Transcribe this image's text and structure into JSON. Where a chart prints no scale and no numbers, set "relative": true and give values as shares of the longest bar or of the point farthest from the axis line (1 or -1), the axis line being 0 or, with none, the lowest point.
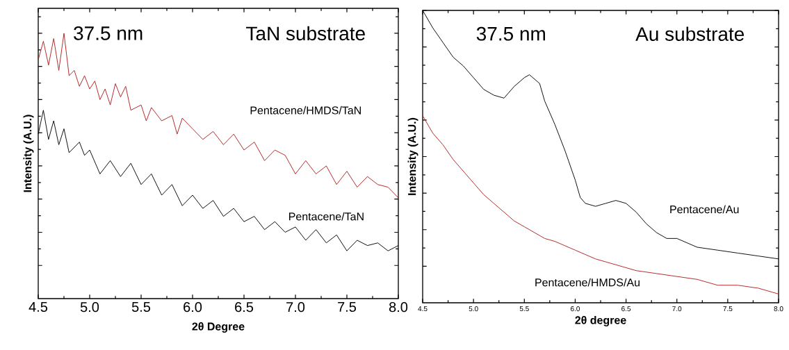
{
  "chart_data": [
    {
      "type": "line",
      "relative": true,
      "title": "TaN substrate",
      "annotations": [
        "37.5 nm"
      ],
      "xlabel": "2θ Degree",
      "ylabel": "Intensity (A.U.)",
      "xlim": [
        4.5,
        8.0
      ],
      "xticks": [
        4.5,
        {
          "value": 5,
          "label": "5.0"
        },
        5.5,
        {
          "value": 6,
          "label": "6.0"
        },
        6.5,
        {
          "value": 7,
          "label": "7.0"
        },
        7.5,
        {
          "value": 8,
          "label": "8.0"
        }
      ],
      "series": [
        {
          "name": "Pentacene/HMDS/TaN",
          "color": "#b01e1e",
          "x": [
            4.5,
            4.55,
            4.6,
            4.65,
            4.7,
            4.75,
            4.8,
            4.85,
            4.9,
            4.95,
            5.0,
            5.05,
            5.1,
            5.15,
            5.2,
            5.25,
            5.3,
            5.35,
            5.4,
            5.5,
            5.55,
            5.6,
            5.7,
            5.8,
            5.85,
            5.9,
            6.0,
            6.1,
            6.2,
            6.3,
            6.4,
            6.5,
            6.6,
            6.7,
            6.8,
            6.9,
            7.0,
            7.1,
            7.2,
            7.3,
            7.4,
            7.5,
            7.6,
            7.7,
            7.8,
            7.9,
            8.0
          ],
          "values": [
            0.9,
            0.97,
            0.88,
            0.98,
            0.86,
            1.0,
            0.84,
            0.86,
            0.8,
            0.84,
            0.79,
            0.82,
            0.75,
            0.79,
            0.73,
            0.81,
            0.76,
            0.8,
            0.71,
            0.73,
            0.67,
            0.72,
            0.67,
            0.69,
            0.62,
            0.68,
            0.64,
            0.6,
            0.63,
            0.58,
            0.62,
            0.56,
            0.59,
            0.52,
            0.56,
            0.54,
            0.47,
            0.52,
            0.47,
            0.5,
            0.43,
            0.48,
            0.42,
            0.46,
            0.43,
            0.42,
            0.38
          ]
        },
        {
          "name": "Pentacene/TaN",
          "color": "#000000",
          "x": [
            4.5,
            4.55,
            4.6,
            4.65,
            4.7,
            4.75,
            4.8,
            4.9,
            4.95,
            5.0,
            5.1,
            5.2,
            5.3,
            5.4,
            5.5,
            5.6,
            5.7,
            5.8,
            5.9,
            6.0,
            6.1,
            6.2,
            6.3,
            6.4,
            6.5,
            6.6,
            6.7,
            6.8,
            6.9,
            7.0,
            7.1,
            7.2,
            7.3,
            7.4,
            7.5,
            7.6,
            7.7,
            7.8,
            7.9,
            8.0
          ],
          "values": [
            0.62,
            0.71,
            0.6,
            0.67,
            0.58,
            0.64,
            0.55,
            0.59,
            0.54,
            0.56,
            0.47,
            0.52,
            0.46,
            0.51,
            0.43,
            0.47,
            0.39,
            0.43,
            0.35,
            0.39,
            0.34,
            0.37,
            0.31,
            0.34,
            0.29,
            0.31,
            0.26,
            0.29,
            0.25,
            0.27,
            0.22,
            0.26,
            0.21,
            0.24,
            0.18,
            0.22,
            0.2,
            0.21,
            0.18,
            0.2
          ]
        }
      ]
    },
    {
      "type": "line",
      "relative": true,
      "title": "Au substrate",
      "annotations": [
        "37.5 nm"
      ],
      "xlabel": "2θ degree",
      "ylabel": "Intensity (A.U.)",
      "xlim": [
        4.5,
        8.0
      ],
      "xticks": [
        4.5,
        {
          "value": 5,
          "label": "5.0"
        },
        5.5,
        {
          "value": 6,
          "label": "6.0"
        },
        6.5,
        {
          "value": 7,
          "label": "7.0"
        },
        7.5,
        {
          "value": 8,
          "label": "8.0"
        }
      ],
      "series": [
        {
          "name": "Pentacene/Au",
          "color": "#000000",
          "x": [
            4.5,
            4.6,
            4.7,
            4.8,
            4.9,
            5.0,
            5.1,
            5.2,
            5.3,
            5.4,
            5.5,
            5.55,
            5.65,
            5.7,
            5.8,
            5.9,
            6.0,
            6.05,
            6.1,
            6.2,
            6.3,
            6.4,
            6.5,
            6.6,
            6.7,
            6.8,
            6.9,
            7.0,
            7.2,
            7.4,
            7.6,
            7.8,
            8.0
          ],
          "values": [
            1.0,
            0.94,
            0.89,
            0.84,
            0.81,
            0.77,
            0.73,
            0.71,
            0.7,
            0.74,
            0.77,
            0.78,
            0.75,
            0.69,
            0.61,
            0.52,
            0.42,
            0.36,
            0.34,
            0.33,
            0.34,
            0.35,
            0.34,
            0.31,
            0.27,
            0.24,
            0.22,
            0.22,
            0.19,
            0.18,
            0.17,
            0.16,
            0.15
          ]
        },
        {
          "name": "Pentacene/HMDS/Au",
          "color": "#b01e1e",
          "x": [
            4.5,
            4.6,
            4.7,
            4.8,
            4.9,
            5.0,
            5.1,
            5.2,
            5.3,
            5.4,
            5.5,
            5.6,
            5.7,
            5.8,
            6.0,
            6.2,
            6.4,
            6.6,
            6.8,
            7.0,
            7.2,
            7.4,
            7.6,
            7.8,
            8.0
          ],
          "values": [
            0.64,
            0.58,
            0.54,
            0.49,
            0.45,
            0.41,
            0.37,
            0.34,
            0.31,
            0.28,
            0.26,
            0.24,
            0.22,
            0.21,
            0.18,
            0.15,
            0.13,
            0.11,
            0.1,
            0.09,
            0.08,
            0.06,
            0.06,
            0.05,
            0.03
          ]
        }
      ]
    }
  ]
}
